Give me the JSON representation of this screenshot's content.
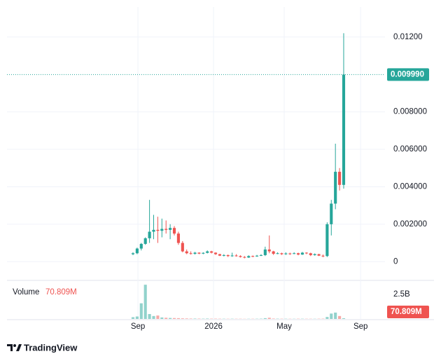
{
  "chart_data": {
    "type": "candlestick",
    "up_color": "#26a69a",
    "down_color": "#ef5350",
    "xlim": [
      -30.5,
      61
    ],
    "xticks": [
      {
        "value": 1.2,
        "label": "Sep"
      },
      {
        "value": 19.5,
        "label": "2026"
      },
      {
        "value": 36.6,
        "label": "May"
      },
      {
        "value": 55.1,
        "label": "Sep"
      }
    ],
    "ylim": [
      -0.001,
      0.0136
    ],
    "yticks": [
      0,
      {
        "value": 0.002,
        "label": "0.002000"
      },
      {
        "value": 0.004,
        "label": "0.004000"
      },
      {
        "value": 0.006,
        "label": "0.006000"
      },
      {
        "value": 0.008,
        "label": "0.008000"
      },
      {
        "value": 0.012,
        "label": "0.01200"
      }
    ],
    "grid": true,
    "last_price": {
      "value": 0.00999,
      "label": "0.009990"
    },
    "open": [
      0.0004,
      0.00045,
      0.0007,
      0.00095,
      0.00125,
      0.0016,
      0.0017,
      0.00165,
      0.00175,
      0.0017,
      0.0018,
      0.0015,
      0.001,
      0.00055,
      0.00045,
      0.00042,
      0.00048,
      0.00043,
      0.00047,
      0.00055,
      0.00048,
      0.0004,
      0.00032,
      0.00035,
      0.0003,
      0.00033,
      0.0003,
      0.00025,
      0.00022,
      0.0003,
      0.00028,
      0.00032,
      0.00035,
      0.00065,
      0.00055,
      0.00042,
      0.00045,
      0.0004,
      0.00044,
      0.00042,
      0.00045,
      0.00038,
      0.00048,
      0.00045,
      0.00035,
      0.0004,
      0.00032,
      0.0003,
      0.002,
      0.0031,
      0.0048,
      0.0041
    ],
    "high": [
      0.0005,
      0.00075,
      0.001,
      0.0013,
      0.0033,
      0.0025,
      0.0024,
      0.0023,
      0.0022,
      0.002,
      0.0019,
      0.0016,
      0.0011,
      0.00065,
      0.00055,
      0.00052,
      0.0005,
      0.0005,
      0.0006,
      0.00058,
      0.0005,
      0.00042,
      0.0004,
      0.00038,
      0.00048,
      0.0004,
      0.00034,
      0.0003,
      0.00034,
      0.00033,
      0.00036,
      0.0004,
      0.0008,
      0.0014,
      0.00058,
      0.0005,
      0.00048,
      0.0005,
      0.00048,
      0.0005,
      0.00048,
      0.00052,
      0.0005,
      0.00048,
      0.00044,
      0.00042,
      0.00038,
      0.0021,
      0.0033,
      0.0063,
      0.005,
      0.0122
    ],
    "low": [
      0.00035,
      0.0004,
      0.0006,
      0.0009,
      0.001,
      0.0012,
      0.001,
      0.0013,
      0.0015,
      0.0012,
      0.0014,
      0.0009,
      0.0005,
      0.0004,
      0.00038,
      0.00038,
      0.0004,
      0.0004,
      0.00044,
      0.00044,
      0.00036,
      0.0003,
      0.00028,
      0.00025,
      0.00026,
      0.00027,
      0.00022,
      0.00018,
      0.0002,
      0.00024,
      0.00026,
      0.0003,
      0.0003,
      0.00045,
      0.00036,
      0.0004,
      0.00036,
      0.00036,
      0.00036,
      0.0004,
      0.00034,
      0.00036,
      0.0004,
      0.0003,
      0.00032,
      0.0003,
      0.00024,
      0.00025,
      0.0014,
      0.0028,
      0.0038,
      0.0039
    ],
    "close": [
      0.00045,
      0.0007,
      0.00095,
      0.00125,
      0.0016,
      0.0017,
      0.00165,
      0.00175,
      0.0017,
      0.0018,
      0.0015,
      0.001,
      0.00055,
      0.00045,
      0.00042,
      0.00048,
      0.00043,
      0.00047,
      0.00055,
      0.00048,
      0.0004,
      0.00032,
      0.00035,
      0.0003,
      0.00033,
      0.0003,
      0.00025,
      0.00022,
      0.0003,
      0.00028,
      0.00032,
      0.00035,
      0.00065,
      0.00055,
      0.00042,
      0.00045,
      0.0004,
      0.00044,
      0.00042,
      0.00045,
      0.00038,
      0.00048,
      0.00045,
      0.00035,
      0.0004,
      0.00032,
      0.0003,
      0.002,
      0.0031,
      0.0048,
      0.0041,
      0.00999
    ],
    "volume": {
      "name": "Volume",
      "ylim": [
        0,
        3800000000
      ],
      "yticks": [
        {
          "value": 2500000000,
          "label": "2.5B"
        }
      ],
      "values": [
        180000000,
        250000000,
        1600000000,
        3500000000,
        500000000,
        300000000,
        350000000,
        150000000,
        120000000,
        100000000,
        90000000,
        80000000,
        60000000,
        50000000,
        40000000,
        40000000,
        35000000,
        30000000,
        40000000,
        30000000,
        30000000,
        25000000,
        25000000,
        20000000,
        25000000,
        20000000,
        20000000,
        15000000,
        20000000,
        20000000,
        25000000,
        30000000,
        80000000,
        120000000,
        40000000,
        30000000,
        25000000,
        25000000,
        20000000,
        20000000,
        25000000,
        25000000,
        20000000,
        20000000,
        20000000,
        25000000,
        30000000,
        200000000,
        550000000,
        650000000,
        300000000,
        70809000
      ],
      "last_label": "70.809M"
    }
  },
  "branding": "TradingView"
}
